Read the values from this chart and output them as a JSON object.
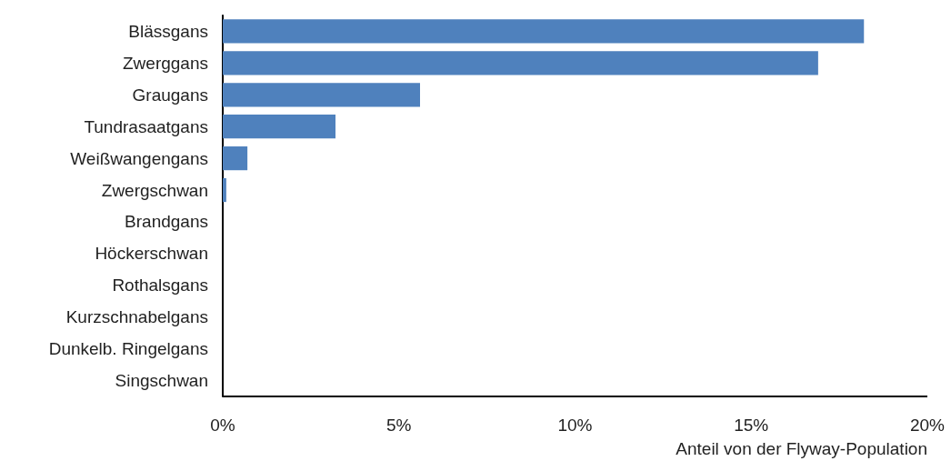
{
  "chart_data": {
    "type": "bar",
    "orientation": "horizontal",
    "xlabel": "Anteil von der Flyway-Population",
    "categories": [
      "Blässgans",
      "Zwerggans",
      "Graugans",
      "Tundrasaatgans",
      "Weißwangengans",
      "Zwergschwan",
      "Brandgans",
      "Höckerschwan",
      "Rothalsgans",
      "Kurzschnabelgans",
      "Dunkelb. Ringelgans",
      "Singschwan"
    ],
    "values": [
      18.2,
      16.9,
      5.6,
      3.2,
      0.7,
      0.1,
      0,
      0,
      0,
      0,
      0,
      0
    ],
    "color": "#4f81bd",
    "xlim": [
      0,
      20
    ],
    "xticks": [
      {
        "value": 0,
        "label": "0%"
      },
      {
        "value": 5,
        "label": "5%"
      },
      {
        "value": 10,
        "label": "10%"
      },
      {
        "value": 15,
        "label": "15%"
      },
      {
        "value": 20,
        "label": "20%"
      }
    ],
    "grid": false
  }
}
